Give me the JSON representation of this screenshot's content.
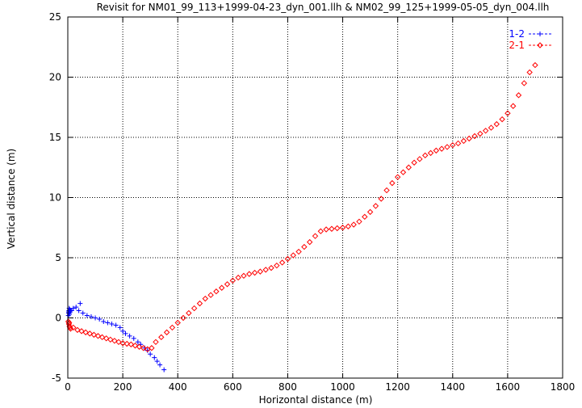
{
  "chart_data": {
    "type": "scatter",
    "title": "Revisit for NM01_99_113+1999-04-23_dyn_001.llh & NM02_99_125+1999-05-05_dyn_004.llh",
    "xlabel": "Horizontal distance (m)",
    "ylabel": "Vertical distance (m)",
    "xlim": [
      0,
      1800
    ],
    "ylim": [
      -5,
      25
    ],
    "xticks": [
      "0",
      "200",
      "400",
      "600",
      "800",
      "1000",
      "1200",
      "1400",
      "1600",
      "1800"
    ],
    "yticks": [
      "-5",
      "0",
      "5",
      "10",
      "15",
      "20",
      "25"
    ],
    "grid": true,
    "legend_position": "top-right",
    "series": [
      {
        "name": "1-2",
        "color": "#0000ff",
        "marker": "plus",
        "points": [
          [
            2,
            0.2
          ],
          [
            3,
            0.4
          ],
          [
            4,
            0.6
          ],
          [
            5,
            0.8
          ],
          [
            3,
            0.5
          ],
          [
            6,
            0.3
          ],
          [
            7,
            0.7
          ],
          [
            8,
            0.5
          ],
          [
            10,
            0.6
          ],
          [
            14,
            0.6
          ],
          [
            20,
            0.8
          ],
          [
            30,
            0.9
          ],
          [
            45,
            1.2
          ],
          [
            40,
            0.6
          ],
          [
            55,
            0.4
          ],
          [
            70,
            0.2
          ],
          [
            85,
            0.1
          ],
          [
            100,
            0.0
          ],
          [
            115,
            -0.1
          ],
          [
            130,
            -0.3
          ],
          [
            145,
            -0.4
          ],
          [
            160,
            -0.5
          ],
          [
            175,
            -0.6
          ],
          [
            190,
            -0.8
          ],
          [
            200,
            -1.1
          ],
          [
            210,
            -1.3
          ],
          [
            225,
            -1.5
          ],
          [
            240,
            -1.7
          ],
          [
            255,
            -2.0
          ],
          [
            265,
            -2.2
          ],
          [
            280,
            -2.5
          ],
          [
            290,
            -2.7
          ],
          [
            300,
            -3.0
          ],
          [
            315,
            -3.3
          ],
          [
            325,
            -3.6
          ],
          [
            335,
            -3.9
          ],
          [
            350,
            -4.3
          ]
        ]
      },
      {
        "name": "2-1",
        "color": "#ff0000",
        "marker": "diamond",
        "points": [
          [
            2,
            -0.3
          ],
          [
            4,
            -0.5
          ],
          [
            6,
            -0.7
          ],
          [
            8,
            -0.8
          ],
          [
            5,
            -0.4
          ],
          [
            10,
            -0.9
          ],
          [
            20,
            -0.8
          ],
          [
            35,
            -1.0
          ],
          [
            50,
            -1.1
          ],
          [
            65,
            -1.2
          ],
          [
            80,
            -1.3
          ],
          [
            95,
            -1.4
          ],
          [
            110,
            -1.5
          ],
          [
            125,
            -1.6
          ],
          [
            140,
            -1.7
          ],
          [
            155,
            -1.8
          ],
          [
            170,
            -1.9
          ],
          [
            185,
            -2.0
          ],
          [
            200,
            -2.1
          ],
          [
            215,
            -2.15
          ],
          [
            230,
            -2.2
          ],
          [
            245,
            -2.3
          ],
          [
            260,
            -2.4
          ],
          [
            275,
            -2.5
          ],
          [
            290,
            -2.6
          ],
          [
            305,
            -2.5
          ],
          [
            320,
            -2.0
          ],
          [
            340,
            -1.6
          ],
          [
            360,
            -1.2
          ],
          [
            380,
            -0.8
          ],
          [
            400,
            -0.4
          ],
          [
            420,
            0.0
          ],
          [
            440,
            0.4
          ],
          [
            460,
            0.8
          ],
          [
            480,
            1.2
          ],
          [
            500,
            1.6
          ],
          [
            520,
            1.9
          ],
          [
            540,
            2.2
          ],
          [
            560,
            2.5
          ],
          [
            580,
            2.8
          ],
          [
            600,
            3.1
          ],
          [
            620,
            3.35
          ],
          [
            640,
            3.5
          ],
          [
            660,
            3.65
          ],
          [
            680,
            3.75
          ],
          [
            700,
            3.85
          ],
          [
            720,
            4.0
          ],
          [
            740,
            4.15
          ],
          [
            760,
            4.35
          ],
          [
            780,
            4.6
          ],
          [
            800,
            4.9
          ],
          [
            820,
            5.2
          ],
          [
            840,
            5.5
          ],
          [
            860,
            5.9
          ],
          [
            880,
            6.3
          ],
          [
            900,
            6.8
          ],
          [
            920,
            7.2
          ],
          [
            940,
            7.35
          ],
          [
            960,
            7.4
          ],
          [
            980,
            7.45
          ],
          [
            1000,
            7.5
          ],
          [
            1020,
            7.6
          ],
          [
            1040,
            7.75
          ],
          [
            1060,
            8.0
          ],
          [
            1080,
            8.4
          ],
          [
            1100,
            8.8
          ],
          [
            1120,
            9.3
          ],
          [
            1140,
            9.9
          ],
          [
            1160,
            10.6
          ],
          [
            1180,
            11.2
          ],
          [
            1200,
            11.7
          ],
          [
            1220,
            12.1
          ],
          [
            1240,
            12.5
          ],
          [
            1260,
            12.9
          ],
          [
            1280,
            13.2
          ],
          [
            1300,
            13.5
          ],
          [
            1320,
            13.7
          ],
          [
            1340,
            13.9
          ],
          [
            1360,
            14.05
          ],
          [
            1380,
            14.2
          ],
          [
            1400,
            14.35
          ],
          [
            1420,
            14.5
          ],
          [
            1440,
            14.7
          ],
          [
            1460,
            14.9
          ],
          [
            1480,
            15.1
          ],
          [
            1500,
            15.3
          ],
          [
            1520,
            15.55
          ],
          [
            1540,
            15.8
          ],
          [
            1560,
            16.1
          ],
          [
            1580,
            16.5
          ],
          [
            1600,
            17.0
          ],
          [
            1620,
            17.6
          ],
          [
            1640,
            18.5
          ],
          [
            1660,
            19.5
          ],
          [
            1680,
            20.4
          ],
          [
            1700,
            21.0
          ]
        ]
      }
    ]
  }
}
